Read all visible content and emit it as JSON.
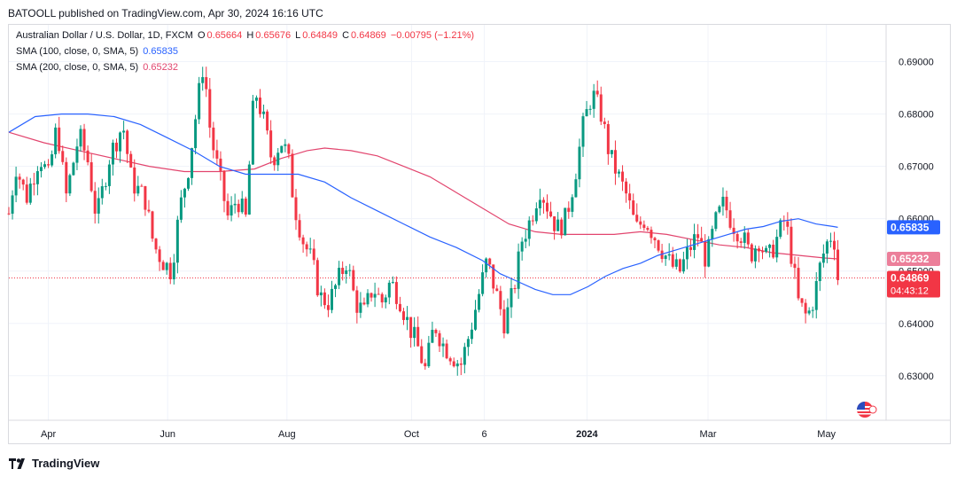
{
  "header": {
    "publisher": "BATOOLL published on TradingView.com, Apr 30, 2024 16:16 UTC"
  },
  "legend": {
    "symbol": "Australian Dollar / U.S. Dollar, 1D, FXCM",
    "o_label": "O",
    "o": "0.65664",
    "h_label": "H",
    "h": "0.65676",
    "l_label": "L",
    "l": "0.64849",
    "c_label": "C",
    "c": "0.64869",
    "change": "−0.00795 (−1.21%)",
    "sma100_label": "SMA (100, close, 0, SMA, 5)",
    "sma100": "0.65835",
    "sma200_label": "SMA (200, close, 0, SMA, 5)",
    "sma200": "0.65232"
  },
  "footer": {
    "brand": "TradingView"
  },
  "colors": {
    "up": "#089981",
    "down": "#f23645",
    "sma100": "#2962ff",
    "sma200": "#e2456e",
    "grid": "#f0f3fa"
  },
  "chart_data": {
    "type": "candlestick",
    "symbol": "AUDUSD",
    "timeframe": "1D",
    "ylim": [
      0.6215,
      0.695
    ],
    "y_ticks": [
      "0.69000",
      "0.68000",
      "0.67000",
      "0.66000",
      "0.65000",
      "0.64000",
      "0.63000"
    ],
    "y_tick_values": [
      0.69,
      0.68,
      0.67,
      0.66,
      0.65,
      0.64,
      0.63
    ],
    "x_labels": [
      {
        "label": "Apr",
        "t": 0.045
      },
      {
        "label": "Jun",
        "t": 0.181
      },
      {
        "label": "Aug",
        "t": 0.317
      },
      {
        "label": "Oct",
        "t": 0.459
      },
      {
        "label": "6",
        "t": 0.542
      },
      {
        "label": "2024",
        "t": 0.659
      },
      {
        "label": "Mar",
        "t": 0.797
      },
      {
        "label": "May",
        "t": 0.932
      }
    ],
    "last_price": 0.64869,
    "countdown": "04:43:12",
    "sma100_last": 0.65835,
    "sma200_last": 0.65232,
    "price_path": [
      [
        0,
        0.661
      ],
      [
        0.008,
        0.67
      ],
      [
        0.02,
        0.664
      ],
      [
        0.035,
        0.672
      ],
      [
        0.045,
        0.668
      ],
      [
        0.055,
        0.678
      ],
      [
        0.065,
        0.664
      ],
      [
        0.08,
        0.676
      ],
      [
        0.09,
        0.671
      ],
      [
        0.1,
        0.66
      ],
      [
        0.115,
        0.672
      ],
      [
        0.13,
        0.678
      ],
      [
        0.14,
        0.667
      ],
      [
        0.155,
        0.664
      ],
      [
        0.165,
        0.655
      ],
      [
        0.175,
        0.652
      ],
      [
        0.185,
        0.65
      ],
      [
        0.195,
        0.662
      ],
      [
        0.205,
        0.67
      ],
      [
        0.215,
        0.682
      ],
      [
        0.222,
        0.69
      ],
      [
        0.23,
        0.676
      ],
      [
        0.24,
        0.668
      ],
      [
        0.25,
        0.66
      ],
      [
        0.26,
        0.664
      ],
      [
        0.27,
        0.66
      ],
      [
        0.28,
        0.685
      ],
      [
        0.29,
        0.679
      ],
      [
        0.3,
        0.671
      ],
      [
        0.31,
        0.675
      ],
      [
        0.318,
        0.672
      ],
      [
        0.325,
        0.663
      ],
      [
        0.335,
        0.656
      ],
      [
        0.345,
        0.652
      ],
      [
        0.355,
        0.645
      ],
      [
        0.365,
        0.644
      ],
      [
        0.375,
        0.648
      ],
      [
        0.385,
        0.652
      ],
      [
        0.395,
        0.644
      ],
      [
        0.405,
        0.642
      ],
      [
        0.415,
        0.647
      ],
      [
        0.425,
        0.644
      ],
      [
        0.435,
        0.648
      ],
      [
        0.445,
        0.645
      ],
      [
        0.455,
        0.64
      ],
      [
        0.465,
        0.636
      ],
      [
        0.475,
        0.631
      ],
      [
        0.485,
        0.64
      ],
      [
        0.495,
        0.636
      ],
      [
        0.505,
        0.634
      ],
      [
        0.515,
        0.632
      ],
      [
        0.525,
        0.638
      ],
      [
        0.535,
        0.645
      ],
      [
        0.545,
        0.652
      ],
      [
        0.555,
        0.646
      ],
      [
        0.565,
        0.64
      ],
      [
        0.575,
        0.646
      ],
      [
        0.585,
        0.656
      ],
      [
        0.595,
        0.66
      ],
      [
        0.605,
        0.666
      ],
      [
        0.615,
        0.662
      ],
      [
        0.625,
        0.658
      ],
      [
        0.635,
        0.66
      ],
      [
        0.645,
        0.668
      ],
      [
        0.655,
        0.678
      ],
      [
        0.665,
        0.684
      ],
      [
        0.675,
        0.68
      ],
      [
        0.685,
        0.672
      ],
      [
        0.695,
        0.668
      ],
      [
        0.705,
        0.664
      ],
      [
        0.715,
        0.658
      ],
      [
        0.725,
        0.66
      ],
      [
        0.735,
        0.657
      ],
      [
        0.745,
        0.654
      ],
      [
        0.755,
        0.651
      ],
      [
        0.765,
        0.65
      ],
      [
        0.775,
        0.654
      ],
      [
        0.785,
        0.657
      ],
      [
        0.795,
        0.652
      ],
      [
        0.805,
        0.659
      ],
      [
        0.815,
        0.663
      ],
      [
        0.825,
        0.659
      ],
      [
        0.835,
        0.657
      ],
      [
        0.845,
        0.653
      ],
      [
        0.855,
        0.656
      ],
      [
        0.865,
        0.652
      ],
      [
        0.875,
        0.656
      ],
      [
        0.885,
        0.66
      ],
      [
        0.893,
        0.652
      ],
      [
        0.9,
        0.644
      ],
      [
        0.91,
        0.641
      ],
      [
        0.918,
        0.645
      ],
      [
        0.926,
        0.652
      ],
      [
        0.934,
        0.656
      ],
      [
        0.94,
        0.6575
      ],
      [
        0.945,
        0.6487
      ]
    ],
    "sma100_path": [
      [
        0,
        0.6765
      ],
      [
        0.03,
        0.6795
      ],
      [
        0.06,
        0.68
      ],
      [
        0.09,
        0.68
      ],
      [
        0.12,
        0.6795
      ],
      [
        0.15,
        0.678
      ],
      [
        0.18,
        0.6755
      ],
      [
        0.21,
        0.673
      ],
      [
        0.24,
        0.67
      ],
      [
        0.27,
        0.6685
      ],
      [
        0.3,
        0.6685
      ],
      [
        0.33,
        0.6685
      ],
      [
        0.36,
        0.667
      ],
      [
        0.39,
        0.664
      ],
      [
        0.42,
        0.6615
      ],
      [
        0.45,
        0.659
      ],
      [
        0.48,
        0.6565
      ],
      [
        0.51,
        0.6545
      ],
      [
        0.54,
        0.652
      ],
      [
        0.56,
        0.6495
      ],
      [
        0.58,
        0.648
      ],
      [
        0.6,
        0.6465
      ],
      [
        0.62,
        0.6455
      ],
      [
        0.64,
        0.6455
      ],
      [
        0.66,
        0.647
      ],
      [
        0.68,
        0.649
      ],
      [
        0.7,
        0.6505
      ],
      [
        0.72,
        0.6515
      ],
      [
        0.74,
        0.653
      ],
      [
        0.76,
        0.654
      ],
      [
        0.78,
        0.655
      ],
      [
        0.8,
        0.656
      ],
      [
        0.82,
        0.657
      ],
      [
        0.84,
        0.658
      ],
      [
        0.86,
        0.6585
      ],
      [
        0.88,
        0.6595
      ],
      [
        0.9,
        0.66
      ],
      [
        0.92,
        0.659
      ],
      [
        0.94,
        0.6585
      ],
      [
        0.945,
        0.65835
      ]
    ],
    "sma200_path": [
      [
        0,
        0.6765
      ],
      [
        0.04,
        0.6745
      ],
      [
        0.08,
        0.673
      ],
      [
        0.12,
        0.6715
      ],
      [
        0.16,
        0.67
      ],
      [
        0.2,
        0.669
      ],
      [
        0.24,
        0.669
      ],
      [
        0.28,
        0.6695
      ],
      [
        0.31,
        0.6715
      ],
      [
        0.34,
        0.673
      ],
      [
        0.36,
        0.6735
      ],
      [
        0.39,
        0.673
      ],
      [
        0.42,
        0.672
      ],
      [
        0.45,
        0.67
      ],
      [
        0.48,
        0.668
      ],
      [
        0.51,
        0.665
      ],
      [
        0.54,
        0.662
      ],
      [
        0.57,
        0.659
      ],
      [
        0.6,
        0.6575
      ],
      [
        0.63,
        0.657
      ],
      [
        0.66,
        0.657
      ],
      [
        0.69,
        0.657
      ],
      [
        0.72,
        0.6575
      ],
      [
        0.75,
        0.657
      ],
      [
        0.78,
        0.656
      ],
      [
        0.81,
        0.655
      ],
      [
        0.84,
        0.6545
      ],
      [
        0.87,
        0.6535
      ],
      [
        0.9,
        0.653
      ],
      [
        0.93,
        0.6525
      ],
      [
        0.945,
        0.65232
      ]
    ]
  }
}
